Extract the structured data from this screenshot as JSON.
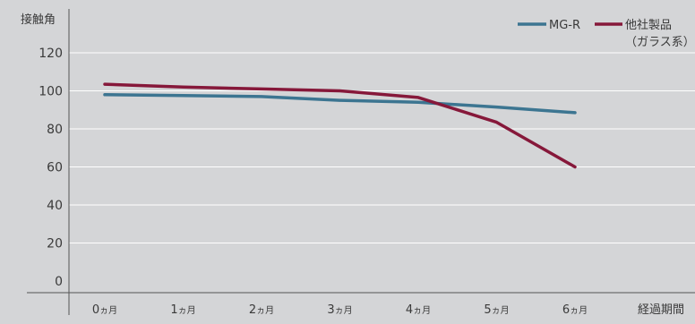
{
  "chart_data": {
    "type": "line",
    "ylabel": "接触角",
    "xlabel": "経過期間",
    "ylim": [
      0,
      120
    ],
    "yticks": [
      0,
      20,
      40,
      60,
      80,
      100,
      120
    ],
    "grid": true,
    "legend_position": "top-right",
    "categories": [
      {
        "num": "0",
        "unit": "ヵ月"
      },
      {
        "num": "1",
        "unit": "ヵ月"
      },
      {
        "num": "2",
        "unit": "ヵ月"
      },
      {
        "num": "3",
        "unit": "ヵ月"
      },
      {
        "num": "4",
        "unit": "ヵ月"
      },
      {
        "num": "5",
        "unit": "ヵ月"
      },
      {
        "num": "6",
        "unit": "ヵ月"
      }
    ],
    "series": [
      {
        "name": "MG-R",
        "color": "#3c7591",
        "values": [
          98,
          97.5,
          97,
          95,
          94,
          91.5,
          88.5
        ]
      },
      {
        "name": "他社製品",
        "name_sub": "（ガラス系）",
        "color": "#86183a",
        "values": [
          103.5,
          102,
          101,
          100,
          96.5,
          83.5,
          60
        ]
      }
    ]
  }
}
